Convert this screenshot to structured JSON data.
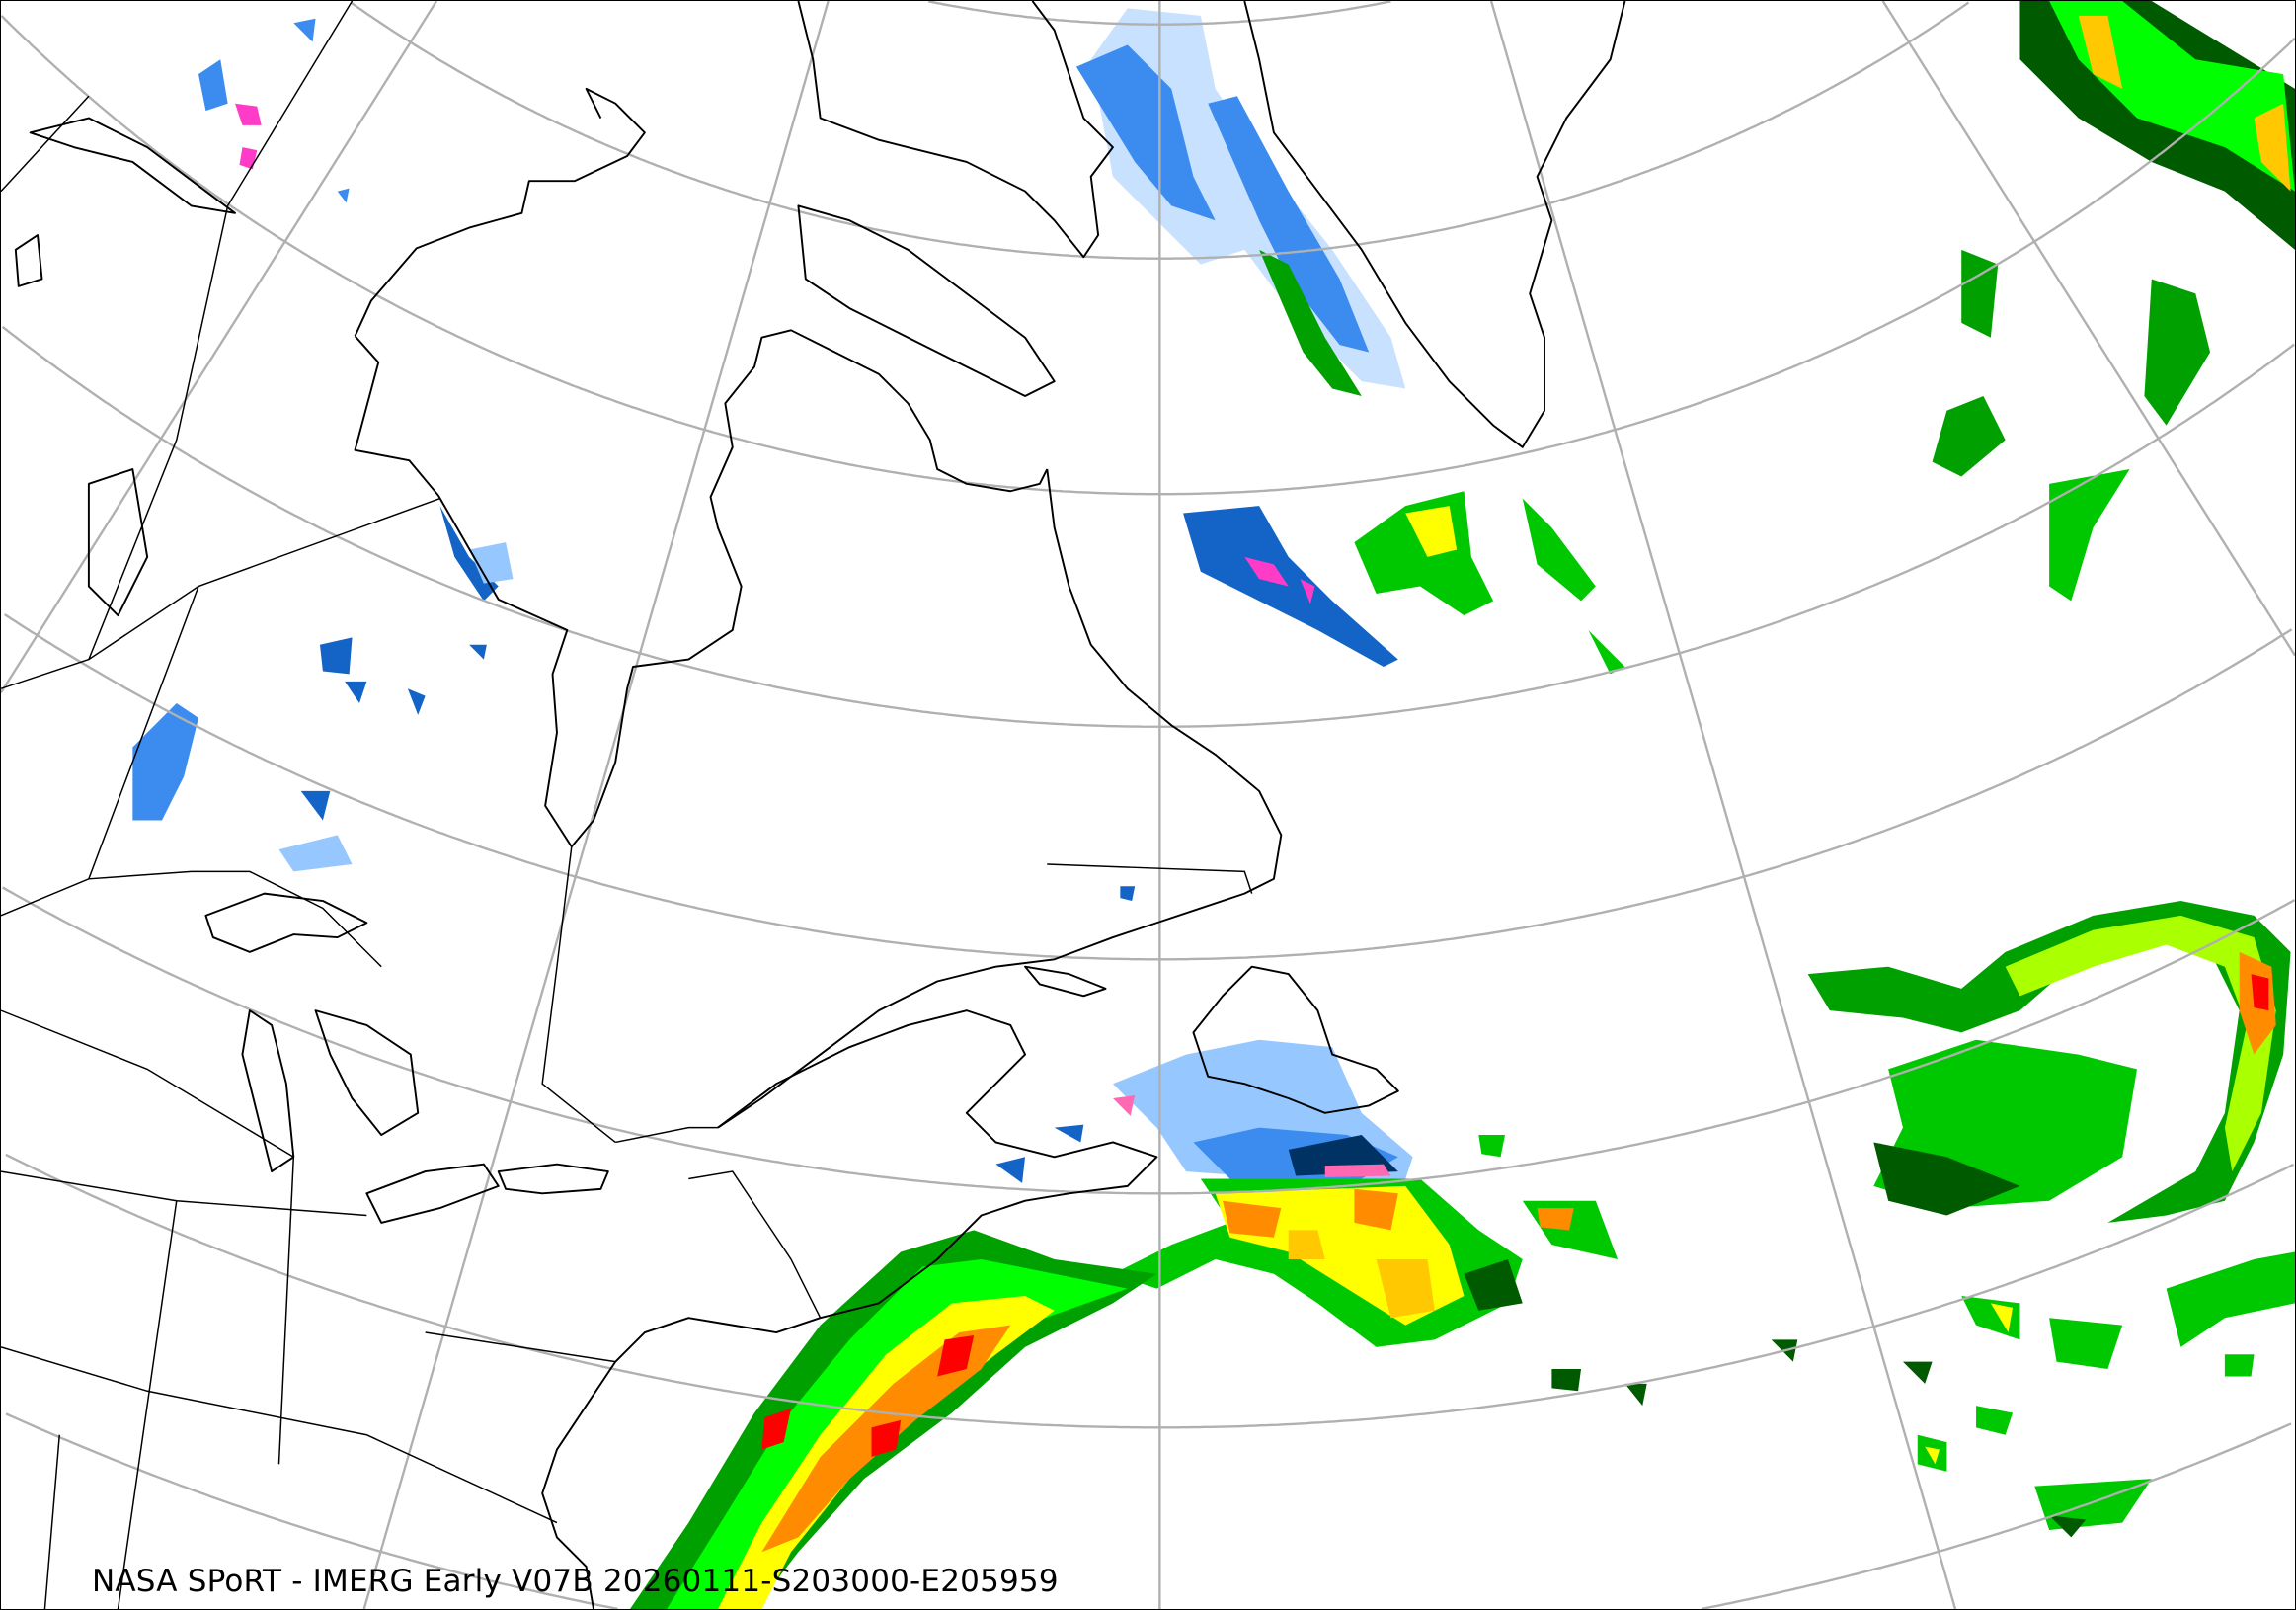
{
  "caption": "NASA SPoRT - IMERG Early V07B 20260111-S203000-E205959",
  "palette": {
    "rain": [
      "#005a00",
      "#00a000",
      "#00ff00",
      "#aaff00",
      "#ffff00",
      "#ffc800",
      "#ff8c00",
      "#ff0000"
    ],
    "snow": [
      "#c8e1ff",
      "#96c8ff",
      "#3c8cf0",
      "#1464c8",
      "#003264"
    ],
    "mixed": [
      "#ff69b4",
      "#ff3cc8"
    ],
    "coastline": "#000000",
    "graticule": "#b0b0b0"
  }
}
